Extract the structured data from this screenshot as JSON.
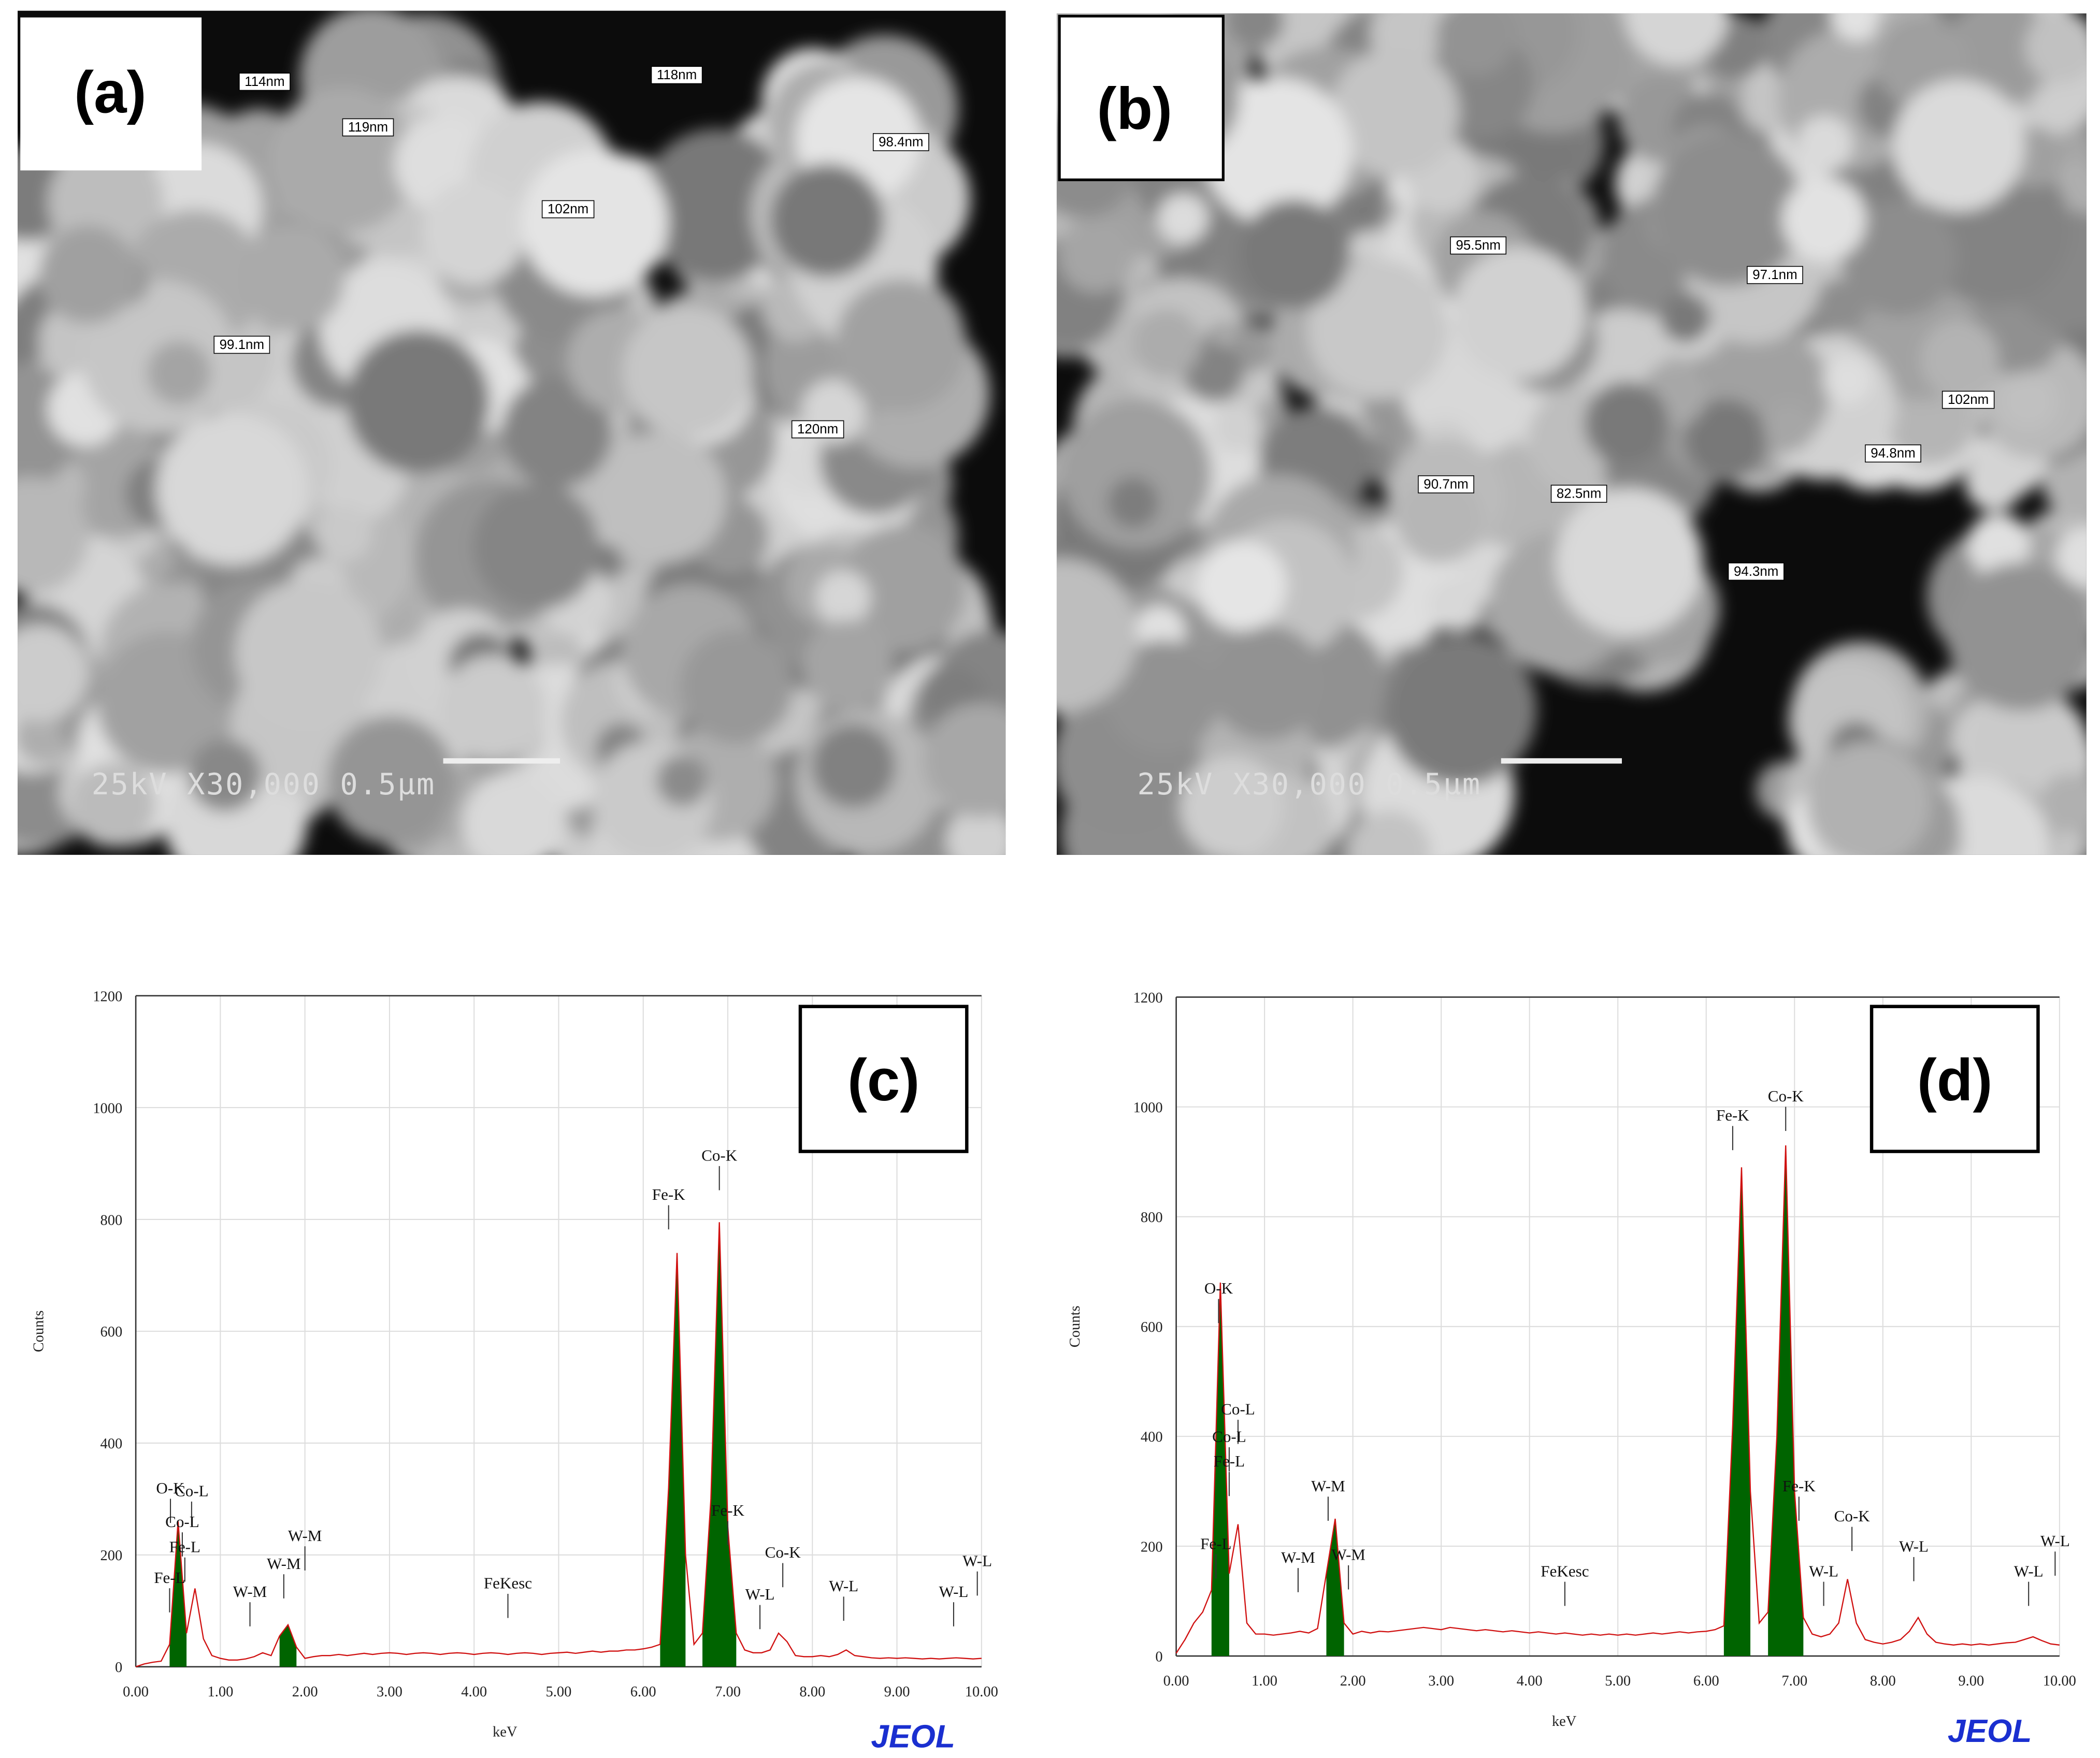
{
  "images": [
    {
      "panel_label": "(a)",
      "measurements": [
        "114nm",
        "119nm",
        "118nm",
        "98.4nm",
        "102nm",
        "99.1nm",
        "120nm"
      ],
      "scale_text": "25kV X30,000 0.5μm"
    },
    {
      "panel_label": "(b)",
      "measurements": [
        "95.5nm",
        "97.1nm",
        "102nm",
        "94.8nm",
        "90.7nm",
        "82.5nm",
        "94.3nm"
      ],
      "scale_text": "25kV X30,000 0.5μm"
    }
  ],
  "chart_data": [
    {
      "type": "line",
      "panel_label": "(c)",
      "logo": "JEOL",
      "xlabel": "keV",
      "ylabel": "Counts",
      "grid": true,
      "xlim": [
        0,
        10
      ],
      "ylim": [
        0,
        1200
      ],
      "xticks": [
        {
          "value": 0,
          "label": "0.00"
        },
        {
          "value": 1,
          "label": "1.00"
        },
        {
          "value": 2,
          "label": "2.00"
        },
        {
          "value": 3,
          "label": "3.00"
        },
        {
          "value": 4,
          "label": "4.00"
        },
        {
          "value": 5,
          "label": "5.00"
        },
        {
          "value": 6,
          "label": "6.00"
        },
        {
          "value": 7,
          "label": "7.00"
        },
        {
          "value": 8,
          "label": "8.00"
        },
        {
          "value": 9,
          "label": "9.00"
        },
        {
          "value": 10,
          "label": "10.00"
        }
      ],
      "yticks": [
        0,
        200,
        400,
        600,
        800,
        1000,
        1200
      ],
      "x": [
        0,
        0.1,
        0.2,
        0.3,
        0.4,
        0.5,
        0.6,
        0.7,
        0.8,
        0.9,
        1,
        1.1,
        1.2,
        1.3,
        1.4,
        1.5,
        1.6,
        1.7,
        1.8,
        1.9,
        2,
        2.1,
        2.2,
        2.3,
        2.4,
        2.5,
        2.6,
        2.7,
        2.8,
        2.9,
        3,
        3.1,
        3.2,
        3.3,
        3.4,
        3.5,
        3.6,
        3.7,
        3.8,
        3.9,
        4,
        4.1,
        4.2,
        4.3,
        4.4,
        4.5,
        4.6,
        4.7,
        4.8,
        4.9,
        5,
        5.1,
        5.2,
        5.3,
        5.4,
        5.5,
        5.6,
        5.7,
        5.8,
        5.9,
        6,
        6.1,
        6.2,
        6.3,
        6.4,
        6.5,
        6.6,
        6.7,
        6.8,
        6.9,
        7,
        7.1,
        7.2,
        7.3,
        7.4,
        7.5,
        7.6,
        7.7,
        7.8,
        7.9,
        8,
        8.1,
        8.2,
        8.3,
        8.4,
        8.5,
        8.6,
        8.7,
        8.8,
        8.9,
        9,
        9.1,
        9.2,
        9.3,
        9.4,
        9.5,
        9.6,
        9.7,
        9.8,
        9.9,
        10
      ],
      "series": [
        {
          "color": "#006400",
          "style": "area",
          "values": [
            null,
            null,
            null,
            null,
            40,
            260,
            60,
            null,
            null,
            null,
            null,
            null,
            null,
            null,
            null,
            null,
            null,
            55,
            75,
            35,
            null,
            null,
            null,
            null,
            null,
            null,
            null,
            null,
            null,
            null,
            null,
            null,
            null,
            null,
            null,
            null,
            null,
            null,
            null,
            null,
            null,
            null,
            null,
            null,
            null,
            null,
            null,
            null,
            null,
            null,
            null,
            null,
            null,
            null,
            null,
            null,
            null,
            null,
            null,
            null,
            null,
            null,
            40,
            320,
            740,
            200,
            null,
            60,
            300,
            795,
            250,
            60,
            null,
            null,
            null,
            null,
            null,
            null,
            null,
            null,
            null,
            null,
            null,
            null,
            null,
            null,
            null,
            null,
            null,
            null,
            null,
            null,
            null,
            null,
            null,
            null,
            null,
            null,
            null,
            null,
            null
          ]
        },
        {
          "color": "#d01010",
          "style": "line",
          "values": [
            0,
            5,
            8,
            10,
            40,
            260,
            60,
            140,
            50,
            20,
            15,
            12,
            12,
            14,
            18,
            25,
            20,
            55,
            75,
            35,
            15,
            18,
            20,
            20,
            22,
            20,
            22,
            24,
            22,
            24,
            25,
            24,
            22,
            24,
            25,
            24,
            22,
            24,
            25,
            24,
            22,
            24,
            25,
            24,
            22,
            24,
            25,
            24,
            22,
            24,
            25,
            26,
            24,
            26,
            28,
            26,
            28,
            28,
            30,
            30,
            32,
            35,
            40,
            320,
            740,
            200,
            40,
            60,
            300,
            795,
            250,
            60,
            30,
            25,
            25,
            30,
            60,
            45,
            20,
            18,
            18,
            20,
            18,
            22,
            30,
            20,
            18,
            16,
            15,
            16,
            15,
            16,
            15,
            14,
            15,
            14,
            15,
            16,
            15,
            14,
            15
          ]
        }
      ],
      "annotations": [
        {
          "label": "O-K",
          "x": 0.41,
          "y": 310
        },
        {
          "label": "Co-L",
          "x": 0.66,
          "y": 305
        },
        {
          "label": "Co-L",
          "x": 0.55,
          "y": 250
        },
        {
          "label": "Fe-L",
          "x": 0.58,
          "y": 205
        },
        {
          "label": "Fe-L",
          "x": 0.4,
          "y": 150
        },
        {
          "label": "W-M",
          "x": 1.35,
          "y": 125
        },
        {
          "label": "W-M",
          "x": 1.75,
          "y": 175
        },
        {
          "label": "W-M",
          "x": 2.0,
          "y": 225
        },
        {
          "label": "FeKesc",
          "x": 4.4,
          "y": 140
        },
        {
          "label": "Fe-K",
          "x": 6.3,
          "y": 835
        },
        {
          "label": "Co-K",
          "x": 6.9,
          "y": 905
        },
        {
          "label": "Fe-K",
          "x": 7.0,
          "y": 270
        },
        {
          "label": "W-L",
          "x": 7.38,
          "y": 120
        },
        {
          "label": "Co-K",
          "x": 7.65,
          "y": 195
        },
        {
          "label": "W-L",
          "x": 8.37,
          "y": 135
        },
        {
          "label": "W-L",
          "x": 9.67,
          "y": 125
        },
        {
          "label": "W-L",
          "x": 9.95,
          "y": 180
        }
      ]
    },
    {
      "type": "line",
      "panel_label": "(d)",
      "logo": "JEOL",
      "xlabel": "keV",
      "ylabel": "Counts",
      "grid": true,
      "xlim": [
        0,
        10
      ],
      "ylim": [
        0,
        1200
      ],
      "xticks": [
        {
          "value": 0,
          "label": "0.00"
        },
        {
          "value": 1,
          "label": "1.00"
        },
        {
          "value": 2,
          "label": "2.00"
        },
        {
          "value": 3,
          "label": "3.00"
        },
        {
          "value": 4,
          "label": "4.00"
        },
        {
          "value": 5,
          "label": "5.00"
        },
        {
          "value": 6,
          "label": "6.00"
        },
        {
          "value": 7,
          "label": "7.00"
        },
        {
          "value": 8,
          "label": "8.00"
        },
        {
          "value": 9,
          "label": "9.00"
        },
        {
          "value": 10,
          "label": "10.00"
        }
      ],
      "yticks": [
        0,
        200,
        400,
        600,
        800,
        1000,
        1200
      ],
      "x": [
        0,
        0.1,
        0.2,
        0.3,
        0.4,
        0.5,
        0.6,
        0.7,
        0.8,
        0.9,
        1,
        1.1,
        1.2,
        1.3,
        1.4,
        1.5,
        1.6,
        1.7,
        1.8,
        1.9,
        2,
        2.1,
        2.2,
        2.3,
        2.4,
        2.5,
        2.6,
        2.7,
        2.8,
        2.9,
        3,
        3.1,
        3.2,
        3.3,
        3.4,
        3.5,
        3.6,
        3.7,
        3.8,
        3.9,
        4,
        4.1,
        4.2,
        4.3,
        4.4,
        4.5,
        4.6,
        4.7,
        4.8,
        4.9,
        5,
        5.1,
        5.2,
        5.3,
        5.4,
        5.5,
        5.6,
        5.7,
        5.8,
        5.9,
        6,
        6.1,
        6.2,
        6.3,
        6.4,
        6.5,
        6.6,
        6.7,
        6.8,
        6.9,
        7,
        7.1,
        7.2,
        7.3,
        7.4,
        7.5,
        7.6,
        7.7,
        7.8,
        7.9,
        8,
        8.1,
        8.2,
        8.3,
        8.4,
        8.5,
        8.6,
        8.7,
        8.8,
        8.9,
        9,
        9.1,
        9.2,
        9.3,
        9.4,
        9.5,
        9.6,
        9.7,
        9.8,
        9.9,
        10
      ],
      "series": [
        {
          "color": "#006400",
          "style": "area",
          "values": [
            null,
            null,
            null,
            null,
            120,
            680,
            150,
            null,
            null,
            null,
            null,
            null,
            null,
            null,
            null,
            null,
            null,
            150,
            250,
            60,
            null,
            null,
            null,
            null,
            null,
            null,
            null,
            null,
            null,
            null,
            null,
            null,
            null,
            null,
            null,
            null,
            null,
            null,
            null,
            null,
            null,
            null,
            null,
            null,
            null,
            null,
            null,
            null,
            null,
            null,
            null,
            null,
            null,
            null,
            null,
            null,
            null,
            null,
            null,
            null,
            null,
            null,
            55,
            420,
            890,
            300,
            null,
            80,
            400,
            930,
            300,
            70,
            null,
            null,
            null,
            null,
            null,
            null,
            null,
            null,
            null,
            null,
            null,
            null,
            null,
            null,
            null,
            null,
            null,
            null,
            null,
            null,
            null,
            null,
            null,
            null,
            null,
            null,
            null,
            null,
            null
          ]
        },
        {
          "color": "#d01010",
          "style": "line",
          "values": [
            5,
            30,
            60,
            80,
            120,
            680,
            150,
            240,
            60,
            40,
            40,
            38,
            40,
            42,
            45,
            42,
            50,
            150,
            250,
            60,
            40,
            45,
            42,
            45,
            44,
            46,
            48,
            50,
            52,
            50,
            48,
            52,
            50,
            48,
            46,
            48,
            46,
            44,
            46,
            44,
            42,
            44,
            42,
            40,
            42,
            40,
            38,
            40,
            38,
            40,
            38,
            40,
            38,
            40,
            42,
            40,
            42,
            44,
            42,
            44,
            45,
            48,
            55,
            420,
            890,
            300,
            60,
            80,
            400,
            930,
            300,
            70,
            40,
            35,
            40,
            60,
            140,
            60,
            30,
            25,
            22,
            25,
            30,
            45,
            70,
            40,
            25,
            22,
            20,
            22,
            20,
            22,
            20,
            22,
            24,
            25,
            30,
            35,
            28,
            22,
            20
          ]
        }
      ],
      "annotations": [
        {
          "label": "O-K",
          "x": 0.48,
          "y": 660
        },
        {
          "label": "Co-L",
          "x": 0.7,
          "y": 440
        },
        {
          "label": "Co-L",
          "x": 0.6,
          "y": 390
        },
        {
          "label": "Fe-L",
          "x": 0.6,
          "y": 345
        },
        {
          "label": "Fe-L",
          "x": 0.45,
          "y": 195
        },
        {
          "label": "W-M",
          "x": 1.38,
          "y": 170
        },
        {
          "label": "W-M",
          "x": 1.72,
          "y": 300
        },
        {
          "label": "W-M",
          "x": 1.95,
          "y": 175
        },
        {
          "label": "FeKesc",
          "x": 4.4,
          "y": 145
        },
        {
          "label": "Fe-K",
          "x": 6.3,
          "y": 975
        },
        {
          "label": "Co-K",
          "x": 6.9,
          "y": 1010
        },
        {
          "label": "Fe-K",
          "x": 7.05,
          "y": 300
        },
        {
          "label": "W-L",
          "x": 7.33,
          "y": 145
        },
        {
          "label": "Co-K",
          "x": 7.65,
          "y": 245
        },
        {
          "label": "W-L",
          "x": 8.35,
          "y": 190
        },
        {
          "label": "W-L",
          "x": 9.65,
          "y": 145
        },
        {
          "label": "W-L",
          "x": 9.95,
          "y": 200
        }
      ]
    }
  ]
}
